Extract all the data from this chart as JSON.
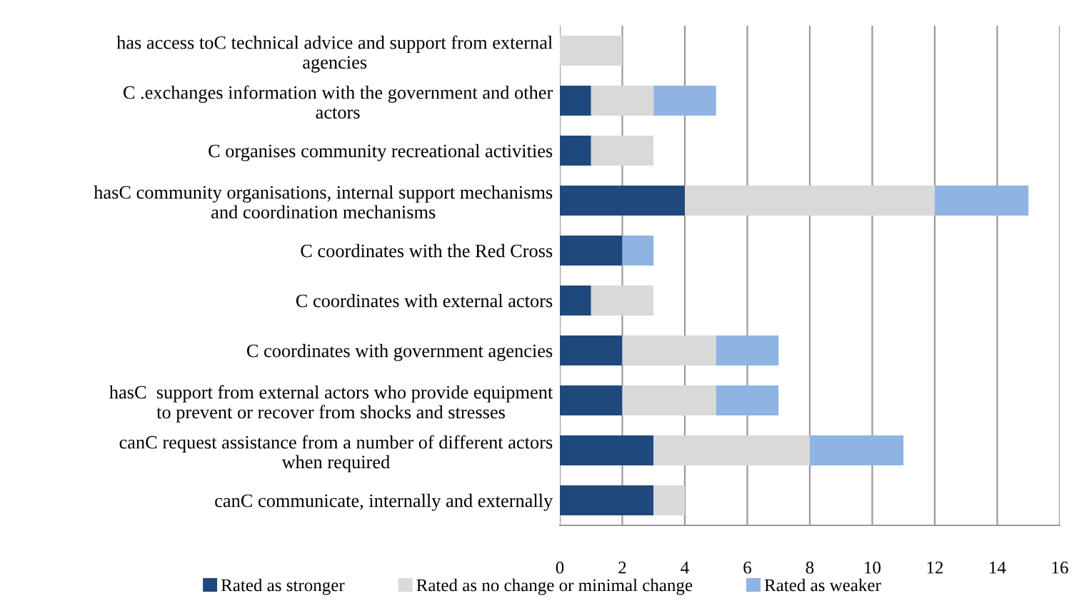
{
  "chart_data": {
    "type": "bar",
    "orientation": "horizontal",
    "stacked": true,
    "categories": [
      "has access toC technical advice and support from external\nagencies",
      "C .exchanges information with the government and other\nactors",
      "C organises community recreational activities",
      "hasC community organisations, internal support mechanisms\nand coordination mechanisms",
      "C coordinates with the Red Cross",
      "C coordinates with external actors",
      "C coordinates with government agencies",
      "hasC  support from external actors who provide equipment\nto prevent or recover from shocks and stresses",
      "canC request assistance from a number of different actors\nwhen required",
      "canC communicate, internally and externally"
    ],
    "series": [
      {
        "name": "Rated as stronger",
        "color": "#1f497d",
        "values": [
          0,
          1,
          1,
          4,
          2,
          1,
          2,
          2,
          3,
          3
        ]
      },
      {
        "name": "Rated as no change or minimal change",
        "color": "#d9d9d9",
        "values": [
          2,
          2,
          2,
          8,
          0,
          2,
          3,
          3,
          5,
          1
        ]
      },
      {
        "name": "Rated as weaker",
        "color": "#8db4e2",
        "values": [
          0,
          2,
          0,
          3,
          1,
          0,
          2,
          2,
          3,
          0
        ]
      }
    ],
    "xlim": [
      0,
      16
    ],
    "xticks": [
      0,
      2,
      4,
      6,
      8,
      10,
      12,
      14,
      16
    ],
    "grid": "x",
    "legend": "bottom"
  }
}
